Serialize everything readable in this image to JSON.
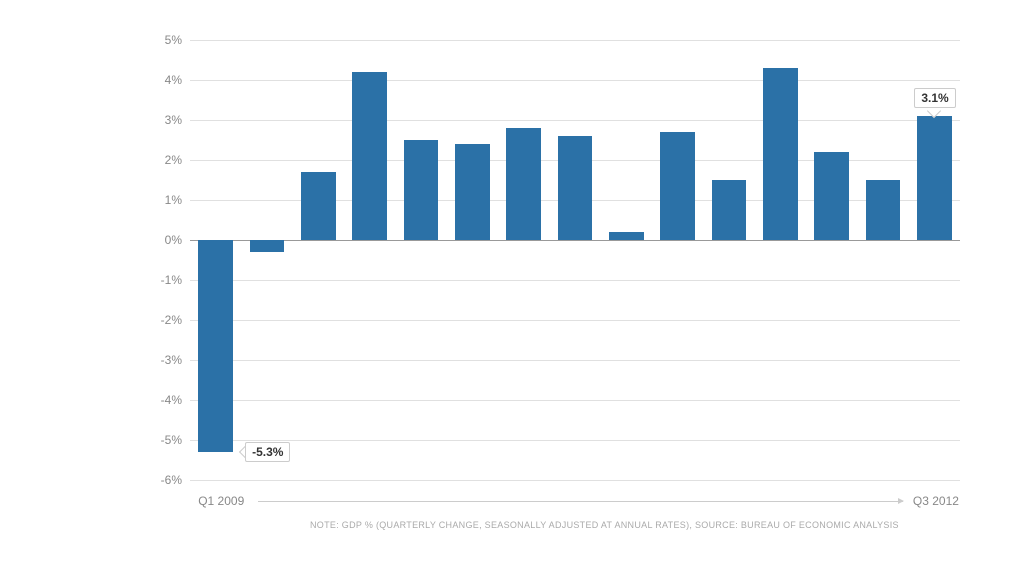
{
  "chart": {
    "type": "bar",
    "values": [
      -5.3,
      -0.3,
      1.7,
      4.2,
      2.5,
      2.4,
      2.8,
      2.6,
      0.2,
      2.7,
      1.5,
      4.3,
      2.2,
      1.5,
      3.1
    ],
    "bar_color": "#2b71a7",
    "background_color": "#ffffff",
    "grid_color": "#e0e0e0",
    "zero_line_color": "#999999",
    "y_label_color": "#888888",
    "bar_width_ratio": 0.68,
    "ylim": [
      -6,
      5
    ],
    "ytick_step": 1,
    "y_tick_labels": [
      "-6%",
      "-5%",
      "-4%",
      "-3%",
      "-2%",
      "-1%",
      "0%",
      "1%",
      "2%",
      "3%",
      "4%",
      "5%"
    ],
    "callouts": [
      {
        "index": 0,
        "text": "-5.3%",
        "side": "right"
      },
      {
        "index": 14,
        "text": "3.1%",
        "side": "above"
      }
    ],
    "x_axis": {
      "start_label": "Q1 2009",
      "end_label": "Q3 2012"
    },
    "footnote": "NOTE: GDP % (QUARTERLY CHANGE, SEASONALLY ADJUSTED AT ANNUAL RATES), SOURCE: BUREAU OF ECONOMIC ANALYSIS"
  }
}
